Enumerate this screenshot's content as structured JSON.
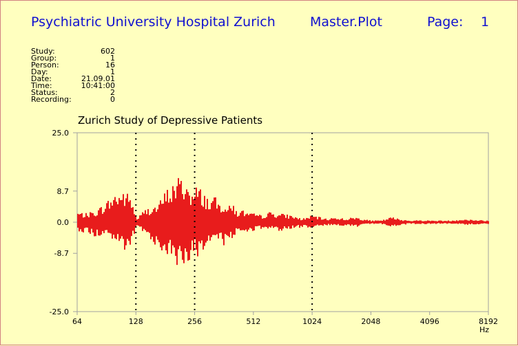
{
  "header": {
    "institution": "Psychiatric University Hospital Zurich",
    "plot_name": "Master.Plot",
    "page_label": "Page:",
    "page_number": "1"
  },
  "meta": [
    {
      "label": "Study:",
      "value": "602"
    },
    {
      "label": "Group:",
      "value": "1"
    },
    {
      "label": "Person:",
      "value": "16"
    },
    {
      "label": "Day:",
      "value": "1"
    },
    {
      "label": "Date:",
      "value": "21.09.01"
    },
    {
      "label": "Time:",
      "value": "10:41:00"
    },
    {
      "label": "Status:",
      "value": "2"
    },
    {
      "label": "Recording:",
      "value": "0"
    }
  ],
  "colors": {
    "background": "#ffffbf",
    "header_text": "#1010d0",
    "signal": "#e81c1c",
    "axes": "#a0a0a0"
  },
  "chart_data": {
    "type": "area",
    "title": "Zurich Study of Depressive Patients",
    "xlabel": "Hz",
    "ylabel": "",
    "x_scale": "log2",
    "xlim": [
      64,
      8192
    ],
    "ylim": [
      -25.0,
      25.0
    ],
    "xticks": [
      "64",
      "128",
      "256",
      "512",
      "1024",
      "2048",
      "4096",
      "8192"
    ],
    "yticks": [
      "25.0",
      "8.7",
      "0.0",
      "-8.7",
      "-25.0"
    ],
    "vlines_hz": [
      128,
      256,
      1024
    ],
    "vline_style": "dotted",
    "envelope": {
      "x_hz": [
        64,
        70,
        80,
        90,
        100,
        110,
        120,
        128,
        140,
        150,
        165,
        180,
        195,
        210,
        225,
        240,
        250,
        260,
        275,
        290,
        300,
        320,
        340,
        360,
        380,
        400,
        420,
        450,
        480,
        512,
        560,
        620,
        700,
        800,
        900,
        1024,
        1100,
        1200,
        1350,
        1500,
        1700,
        1900,
        2048,
        2300,
        2600,
        2900,
        3300,
        3700,
        4096,
        4600,
        5200,
        5800,
        6500,
        7300,
        8192
      ],
      "upper": [
        3.0,
        2.5,
        3.5,
        6.0,
        8.5,
        9.0,
        7.5,
        1.0,
        3.5,
        4.5,
        5.0,
        9.0,
        11.0,
        13.0,
        12.5,
        10.5,
        8.0,
        10.5,
        9.5,
        8.0,
        6.5,
        7.5,
        5.5,
        6.0,
        4.5,
        5.5,
        3.0,
        3.5,
        2.5,
        2.5,
        2.0,
        3.0,
        2.5,
        2.0,
        1.0,
        2.0,
        1.5,
        1.0,
        1.5,
        1.0,
        1.5,
        0.8,
        0.5,
        0.5,
        1.5,
        0.8,
        0.5,
        0.6,
        0.5,
        0.5,
        0.5,
        0.8,
        0.8,
        0.6,
        0.5
      ],
      "lower": [
        -2.5,
        -3.0,
        -4.5,
        -3.5,
        -6.0,
        -8.5,
        -7.5,
        -1.0,
        -3.5,
        -4.5,
        -7.5,
        -9.0,
        -11.0,
        -13.0,
        -12.5,
        -10.5,
        -9.0,
        -11.0,
        -9.0,
        -8.5,
        -6.5,
        -7.0,
        -6.5,
        -6.5,
        -5.0,
        -5.0,
        -3.0,
        -3.0,
        -2.5,
        -2.5,
        -2.0,
        -2.0,
        -2.5,
        -2.0,
        -1.5,
        -1.5,
        -1.0,
        -1.0,
        -1.0,
        -1.0,
        -1.5,
        -0.8,
        -0.5,
        -0.5,
        -1.5,
        -0.8,
        -0.5,
        -0.6,
        -0.5,
        -0.5,
        -0.5,
        -0.6,
        -0.8,
        -0.6,
        -0.5
      ]
    },
    "grid": false
  }
}
